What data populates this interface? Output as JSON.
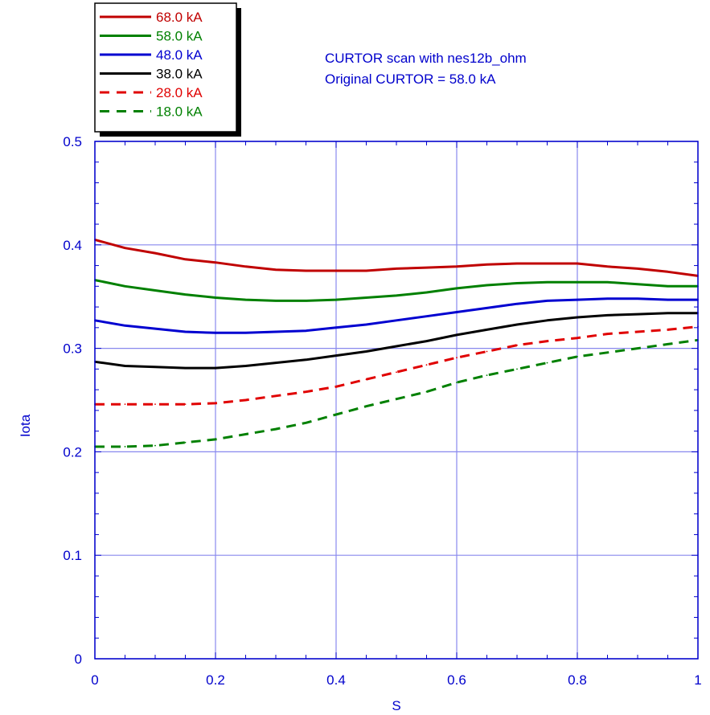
{
  "chart_data": {
    "type": "line",
    "annotations": [
      "CURTOR scan with nes12b_ohm",
      "Original CURTOR = 58.0 kA"
    ],
    "xlabel": "S",
    "ylabel": "Iota",
    "xlim": [
      0,
      1
    ],
    "ylim": [
      0,
      0.5
    ],
    "xticks": [
      "0",
      "0.2",
      "0.4",
      "0.6",
      "0.8",
      "1"
    ],
    "yticks": [
      "0",
      "0.1",
      "0.2",
      "0.3",
      "0.4",
      "0.5"
    ],
    "grid": true,
    "legend_position": "top-left",
    "x": [
      0,
      0.05,
      0.1,
      0.15,
      0.2,
      0.25,
      0.3,
      0.35,
      0.4,
      0.45,
      0.5,
      0.55,
      0.6,
      0.65,
      0.7,
      0.75,
      0.8,
      0.85,
      0.9,
      0.95,
      1.0
    ],
    "series": [
      {
        "name": "68.0 kA",
        "color": "#c00000",
        "dash": "solid",
        "values": [
          0.405,
          0.397,
          0.392,
          0.386,
          0.383,
          0.379,
          0.376,
          0.375,
          0.375,
          0.375,
          0.377,
          0.378,
          0.379,
          0.381,
          0.382,
          0.382,
          0.382,
          0.379,
          0.377,
          0.374,
          0.37
        ]
      },
      {
        "name": "58.0 kA",
        "color": "#008000",
        "dash": "solid",
        "values": [
          0.366,
          0.36,
          0.356,
          0.352,
          0.349,
          0.347,
          0.346,
          0.346,
          0.347,
          0.349,
          0.351,
          0.354,
          0.358,
          0.361,
          0.363,
          0.364,
          0.364,
          0.364,
          0.362,
          0.36,
          0.36
        ]
      },
      {
        "name": "48.0 kA",
        "color": "#0000d0",
        "dash": "solid",
        "values": [
          0.327,
          0.322,
          0.319,
          0.316,
          0.315,
          0.315,
          0.316,
          0.317,
          0.32,
          0.323,
          0.327,
          0.331,
          0.335,
          0.339,
          0.343,
          0.346,
          0.347,
          0.348,
          0.348,
          0.347,
          0.347
        ]
      },
      {
        "name": "38.0 kA",
        "color": "#000000",
        "dash": "solid",
        "values": [
          0.287,
          0.283,
          0.282,
          0.281,
          0.281,
          0.283,
          0.286,
          0.289,
          0.293,
          0.297,
          0.302,
          0.307,
          0.313,
          0.318,
          0.323,
          0.327,
          0.33,
          0.332,
          0.333,
          0.334,
          0.334
        ]
      },
      {
        "name": "28.0 kA",
        "color": "#e00000",
        "dash": "dashed",
        "values": [
          0.246,
          0.246,
          0.246,
          0.246,
          0.247,
          0.25,
          0.254,
          0.258,
          0.263,
          0.27,
          0.277,
          0.284,
          0.291,
          0.297,
          0.303,
          0.307,
          0.31,
          0.314,
          0.316,
          0.318,
          0.321
        ]
      },
      {
        "name": "18.0  kA",
        "color": "#008000",
        "dash": "dashed",
        "values": [
          0.205,
          0.205,
          0.206,
          0.209,
          0.212,
          0.217,
          0.222,
          0.228,
          0.236,
          0.244,
          0.251,
          0.258,
          0.267,
          0.274,
          0.28,
          0.286,
          0.292,
          0.296,
          0.3,
          0.304,
          0.308
        ]
      }
    ]
  }
}
